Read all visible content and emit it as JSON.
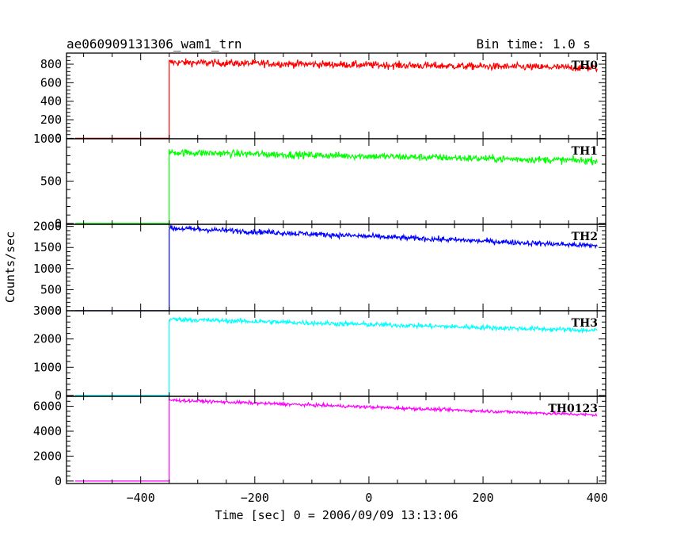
{
  "header": {
    "title": "ae060909131306_wam1_trn",
    "bin_time": "Bin time: 1.0 s"
  },
  "chart_data": {
    "type": "line",
    "title": "ae060909131306_wam1_trn",
    "xlabel": "Time [sec] 0 = 2006/09/09 13:13:06",
    "ylabel": "Counts/sec",
    "xlim": [
      -530,
      415
    ],
    "x_ticks": [
      -400,
      -200,
      0,
      200,
      400
    ],
    "x_tick_labels": [
      "−400",
      "−200",
      "0",
      "200",
      "400"
    ],
    "trigger_time": -350,
    "x_end": 400,
    "grid": false,
    "panels": [
      {
        "name": "TH0",
        "color": "#ff0000",
        "ylim": [
          -5,
          920
        ],
        "y_ticks": [
          0,
          200,
          400,
          600,
          800
        ],
        "y_tick_labels": [
          "0",
          "200",
          "400",
          "600",
          "800"
        ],
        "pre_trigger_level": 0,
        "series_start": 820,
        "series_end": 760,
        "noise": 28
      },
      {
        "name": "TH1",
        "color": "#00ff00",
        "ylim": [
          -10,
          1000
        ],
        "y_ticks": [
          0,
          500,
          1000
        ],
        "y_tick_labels": [
          "0",
          "500",
          "1000"
        ],
        "pre_trigger_level": 0,
        "series_start": 840,
        "series_end": 740,
        "noise": 30
      },
      {
        "name": "TH2",
        "color": "#0000ff",
        "ylim": [
          0,
          2050
        ],
        "y_ticks": [
          0,
          500,
          1000,
          1500,
          2000
        ],
        "y_tick_labels": [
          "0",
          "500",
          "1000",
          "1500",
          "2000"
        ],
        "pre_trigger_level": 0,
        "series_start": 1960,
        "series_end": 1540,
        "noise": 45
      },
      {
        "name": "TH3",
        "color": "#00ffff",
        "ylim": [
          -30,
          3000
        ],
        "y_ticks": [
          0,
          1000,
          2000,
          3000
        ],
        "y_tick_labels": [
          "0",
          "1000",
          "2000",
          "3000"
        ],
        "pre_trigger_level": 0,
        "series_start": 2700,
        "series_end": 2300,
        "noise": 60
      },
      {
        "name": "TH0123",
        "color": "#ff00ff",
        "ylim": [
          -200,
          6800
        ],
        "y_ticks": [
          0,
          2000,
          4000,
          6000
        ],
        "y_tick_labels": [
          "0",
          "2000",
          "4000",
          "6000"
        ],
        "pre_trigger_level": 0,
        "series_start": 6500,
        "series_end": 5300,
        "noise": 90
      }
    ]
  }
}
